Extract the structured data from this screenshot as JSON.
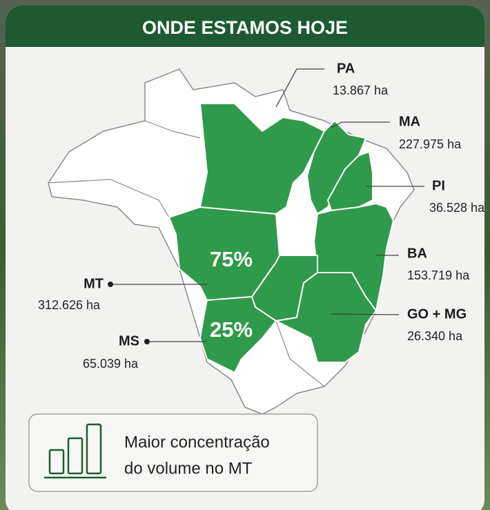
{
  "header": {
    "title": "ONDE ESTAMOS HOJE"
  },
  "regions": [
    {
      "name": "PA",
      "area": "13.867 ha"
    },
    {
      "name": "MA",
      "area": "227.975 ha"
    },
    {
      "name": "PI",
      "area": "36.528 ha"
    },
    {
      "name": "BA",
      "area": "153.719 ha"
    },
    {
      "name": "GO + MG",
      "area": "26.340 ha"
    },
    {
      "name": "MT",
      "area": "312.626 ha"
    },
    {
      "name": "MS",
      "area": "65.039 ha"
    }
  ],
  "shares": [
    "75%",
    "25%"
  ],
  "footer": {
    "lines": [
      "Maior concentração",
      "do volume no MT"
    ]
  }
}
